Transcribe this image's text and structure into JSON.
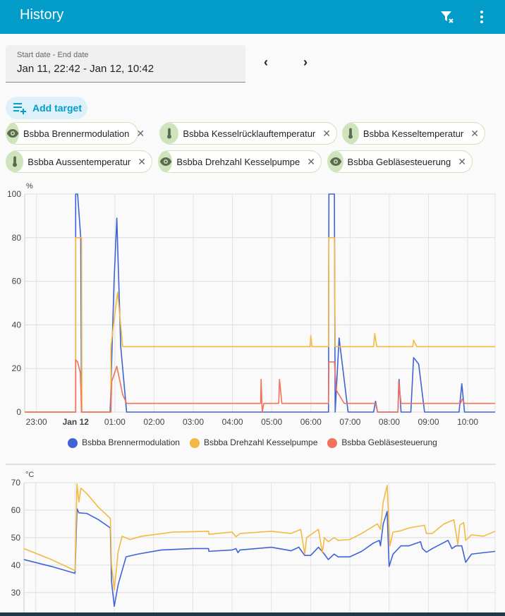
{
  "header": {
    "title": "History",
    "clear_filter_icon": "filter-remove-icon",
    "menu_icon": "dots-vertical-icon"
  },
  "date_picker": {
    "label": "Start date - End date",
    "value": "Jan 11, 22:42 - Jan 12, 10:42",
    "prev": "‹",
    "next": "›"
  },
  "add_target": "Add target",
  "chips": [
    {
      "label": "Bsbba Brennermodulation",
      "icon": "eye"
    },
    {
      "label": "Bsbba Kesselrücklauftemperatur",
      "icon": "thermometer"
    },
    {
      "label": "Bsbba Kesseltemperatur",
      "icon": "thermometer"
    },
    {
      "label": "Bsbba Aussentemperatur",
      "icon": "thermometer"
    },
    {
      "label": "Bsbba Drehzahl Kesselpumpe",
      "icon": "eye"
    },
    {
      "label": "Bsbba Gebläsesteuerung",
      "icon": "eye"
    }
  ],
  "chart_data": [
    {
      "type": "line",
      "ylabel": "%",
      "ylim": [
        0,
        100
      ],
      "yticks": [
        0,
        20,
        40,
        60,
        80,
        100
      ],
      "xlim": [
        -1.3,
        10.7
      ],
      "xticks": [
        {
          "v": -1,
          "l": "23:00"
        },
        {
          "v": 0,
          "l": "Jan 12",
          "bold": true
        },
        {
          "v": 1,
          "l": "01:00"
        },
        {
          "v": 2,
          "l": "02:00"
        },
        {
          "v": 3,
          "l": "03:00"
        },
        {
          "v": 4,
          "l": "04:00"
        },
        {
          "v": 5,
          "l": "05:00"
        },
        {
          "v": 6,
          "l": "06:00"
        },
        {
          "v": 7,
          "l": "07:00"
        },
        {
          "v": 8,
          "l": "08:00"
        },
        {
          "v": 9,
          "l": "09:00"
        },
        {
          "v": 10,
          "l": "10:00"
        }
      ],
      "legend_position": "bottom",
      "series": [
        {
          "name": "Bsbba Brennermodulation",
          "color": "#3f63d6",
          "points": [
            [
              -1.3,
              0
            ],
            [
              0,
              0
            ],
            [
              0,
              100
            ],
            [
              0.05,
              100
            ],
            [
              0.13,
              80
            ],
            [
              0.15,
              0
            ],
            [
              0.88,
              0
            ],
            [
              0.98,
              60
            ],
            [
              1.05,
              89
            ],
            [
              1.15,
              30
            ],
            [
              1.3,
              0
            ],
            [
              6.45,
              0
            ],
            [
              6.46,
              100
            ],
            [
              6.6,
              100
            ],
            [
              6.62,
              0
            ],
            [
              6.72,
              34
            ],
            [
              6.95,
              0
            ],
            [
              7.6,
              0
            ],
            [
              7.65,
              5
            ],
            [
              7.7,
              0
            ],
            [
              8.22,
              0
            ],
            [
              8.25,
              15
            ],
            [
              8.3,
              0
            ],
            [
              8.55,
              0
            ],
            [
              8.62,
              25
            ],
            [
              8.75,
              22
            ],
            [
              8.9,
              0
            ],
            [
              9.78,
              0
            ],
            [
              9.85,
              13
            ],
            [
              9.92,
              0
            ],
            [
              10.7,
              0
            ]
          ]
        },
        {
          "name": "Bsbba Drehzahl Kesselpumpe",
          "color": "#f4b942",
          "points": [
            [
              -1.3,
              0
            ],
            [
              0,
              0
            ],
            [
              0,
              80
            ],
            [
              0.15,
              80
            ],
            [
              0.16,
              0
            ],
            [
              0.9,
              0
            ],
            [
              0.9,
              30
            ],
            [
              1.0,
              45
            ],
            [
              1.07,
              55
            ],
            [
              1.2,
              30
            ],
            [
              5.98,
              30
            ],
            [
              6.0,
              35
            ],
            [
              6.03,
              30
            ],
            [
              6.45,
              30
            ],
            [
              6.46,
              80
            ],
            [
              6.6,
              80
            ],
            [
              6.62,
              30
            ],
            [
              7.6,
              30
            ],
            [
              7.63,
              36
            ],
            [
              7.68,
              30
            ],
            [
              8.6,
              30
            ],
            [
              8.62,
              33
            ],
            [
              8.7,
              30
            ],
            [
              10.7,
              30
            ]
          ]
        },
        {
          "name": "Bsbba Gebläsesteuerung",
          "color": "#f4715a",
          "points": [
            [
              -1.3,
              0
            ],
            [
              0,
              0
            ],
            [
              0,
              24
            ],
            [
              0.05,
              23
            ],
            [
              0.12,
              18
            ],
            [
              0.15,
              0
            ],
            [
              0.9,
              0
            ],
            [
              0.92,
              14
            ],
            [
              1.05,
              21
            ],
            [
              1.2,
              8
            ],
            [
              1.3,
              4
            ],
            [
              4.72,
              4
            ],
            [
              4.73,
              15
            ],
            [
              4.76,
              0
            ],
            [
              4.8,
              4
            ],
            [
              5.18,
              4
            ],
            [
              5.2,
              15
            ],
            [
              5.26,
              4
            ],
            [
              6.45,
              4
            ],
            [
              6.46,
              23
            ],
            [
              6.6,
              23
            ],
            [
              6.65,
              10
            ],
            [
              6.85,
              4
            ],
            [
              7.65,
              4
            ],
            [
              7.7,
              0
            ],
            [
              8.22,
              0
            ],
            [
              8.24,
              14
            ],
            [
              8.3,
              4
            ],
            [
              9.82,
              4
            ],
            [
              9.86,
              6
            ],
            [
              9.92,
              4
            ],
            [
              10.7,
              4
            ]
          ]
        }
      ]
    },
    {
      "type": "line",
      "ylabel": "°C",
      "ylim": [
        22.5,
        70
      ],
      "yticks": [
        30,
        40,
        50,
        60,
        70
      ],
      "xlim": [
        -1.3,
        10.7
      ],
      "series": [
        {
          "name": "Bsbba Kesselrücklauftemperatur",
          "color": "#3f63d6",
          "points": [
            [
              -1.3,
              42
            ],
            [
              -0.6,
              39.5
            ],
            [
              0,
              37
            ],
            [
              0.05,
              60.5
            ],
            [
              0.1,
              59
            ],
            [
              0.3,
              58.8
            ],
            [
              0.6,
              56.5
            ],
            [
              0.9,
              53.5
            ],
            [
              0.93,
              34
            ],
            [
              1.0,
              25
            ],
            [
              1.1,
              33
            ],
            [
              1.3,
              43
            ],
            [
              1.6,
              44
            ],
            [
              2.2,
              45.5
            ],
            [
              3.0,
              46
            ],
            [
              3.4,
              46
            ],
            [
              3.41,
              45
            ],
            [
              4.0,
              45.5
            ],
            [
              4.1,
              46
            ],
            [
              4.15,
              44.5
            ],
            [
              4.2,
              45.5
            ],
            [
              5.0,
              46.5
            ],
            [
              5.4,
              45.5
            ],
            [
              5.5,
              45.2
            ],
            [
              5.7,
              46.5
            ],
            [
              5.85,
              43.5
            ],
            [
              6.0,
              43.5
            ],
            [
              6.2,
              46.5
            ],
            [
              6.35,
              44
            ],
            [
              6.45,
              42
            ],
            [
              6.6,
              44
            ],
            [
              6.7,
              43
            ],
            [
              7.0,
              43
            ],
            [
              7.3,
              45
            ],
            [
              7.6,
              48
            ],
            [
              7.75,
              49
            ],
            [
              7.78,
              47
            ],
            [
              7.85,
              55
            ],
            [
              7.95,
              59.5
            ],
            [
              8.0,
              39.5
            ],
            [
              8.1,
              44
            ],
            [
              8.3,
              47
            ],
            [
              8.5,
              47
            ],
            [
              8.8,
              48.5
            ],
            [
              8.85,
              46
            ],
            [
              8.95,
              44.7
            ],
            [
              9.1,
              46
            ],
            [
              9.5,
              49
            ],
            [
              9.6,
              46
            ],
            [
              9.7,
              47
            ],
            [
              9.85,
              47
            ],
            [
              9.95,
              41
            ],
            [
              10.1,
              44
            ],
            [
              10.7,
              45
            ]
          ]
        },
        {
          "name": "Bsbba Kesseltemperatur",
          "color": "#f4b942",
          "points": [
            [
              -1.3,
              46
            ],
            [
              -0.6,
              42
            ],
            [
              0,
              38
            ],
            [
              0.05,
              69.5
            ],
            [
              0.1,
              63
            ],
            [
              0.15,
              68
            ],
            [
              0.3,
              66
            ],
            [
              0.6,
              61
            ],
            [
              0.9,
              57
            ],
            [
              0.93,
              40
            ],
            [
              1.0,
              31
            ],
            [
              1.1,
              45
            ],
            [
              1.2,
              50.5
            ],
            [
              1.4,
              49.3
            ],
            [
              1.7,
              50.5
            ],
            [
              2.5,
              52
            ],
            [
              3.4,
              52.3
            ],
            [
              3.41,
              51.2
            ],
            [
              4.0,
              52
            ],
            [
              4.1,
              50.3
            ],
            [
              4.2,
              51.5
            ],
            [
              5.0,
              52.3
            ],
            [
              5.5,
              51.5
            ],
            [
              5.75,
              53
            ],
            [
              5.85,
              44
            ],
            [
              5.9,
              50
            ],
            [
              6.2,
              53
            ],
            [
              6.3,
              44.5
            ],
            [
              6.35,
              50
            ],
            [
              6.45,
              48.5
            ],
            [
              6.6,
              50
            ],
            [
              6.7,
              49
            ],
            [
              7.0,
              49.3
            ],
            [
              7.3,
              51.5
            ],
            [
              7.7,
              55
            ],
            [
              7.78,
              53
            ],
            [
              7.85,
              63
            ],
            [
              7.95,
              69
            ],
            [
              8.02,
              47
            ],
            [
              8.1,
              52
            ],
            [
              8.3,
              52.5
            ],
            [
              8.5,
              53.5
            ],
            [
              8.9,
              54.5
            ],
            [
              8.95,
              51.5
            ],
            [
              9.1,
              51.5
            ],
            [
              9.4,
              55
            ],
            [
              9.65,
              56.5
            ],
            [
              9.75,
              47.5
            ],
            [
              9.8,
              54.5
            ],
            [
              9.9,
              55.5
            ],
            [
              9.95,
              49
            ],
            [
              10.1,
              51
            ],
            [
              10.4,
              50.5
            ],
            [
              10.7,
              52.3
            ]
          ]
        }
      ]
    }
  ]
}
